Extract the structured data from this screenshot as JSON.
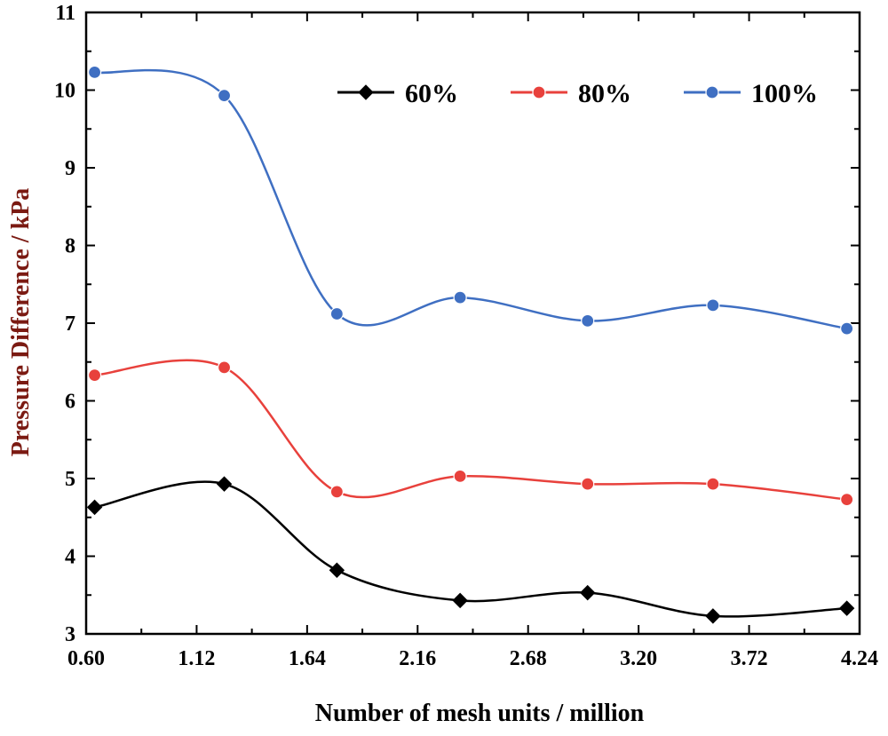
{
  "chart_data": {
    "type": "line",
    "title": "",
    "xlabel": "Number of mesh units / million",
    "ylabel": "Pressure Difference / kPa",
    "xlim": [
      0.6,
      4.24
    ],
    "ylim": [
      3,
      11
    ],
    "xticks": [
      "0.60",
      "1.12",
      "1.64",
      "2.16",
      "2.68",
      "3.20",
      "3.72",
      "4.24"
    ],
    "yticks": [
      "3",
      "4",
      "5",
      "6",
      "7",
      "8",
      "9",
      "10",
      "11"
    ],
    "x": [
      0.64,
      1.25,
      1.78,
      2.36,
      2.96,
      3.55,
      4.18
    ],
    "grid": false,
    "legend_position": "top-right",
    "series": [
      {
        "name": "60%",
        "color": "#000000",
        "marker": "diamond",
        "values": [
          4.63,
          4.93,
          3.82,
          3.43,
          3.53,
          3.23,
          3.33
        ]
      },
      {
        "name": "80%",
        "color": "#e8413c",
        "marker": "circle",
        "values": [
          6.33,
          6.43,
          4.83,
          5.03,
          4.93,
          4.93,
          4.73
        ]
      },
      {
        "name": "100%",
        "color": "#3f6fc2",
        "marker": "circle",
        "values": [
          10.23,
          9.93,
          7.12,
          7.33,
          7.03,
          7.23,
          6.93
        ]
      }
    ]
  }
}
